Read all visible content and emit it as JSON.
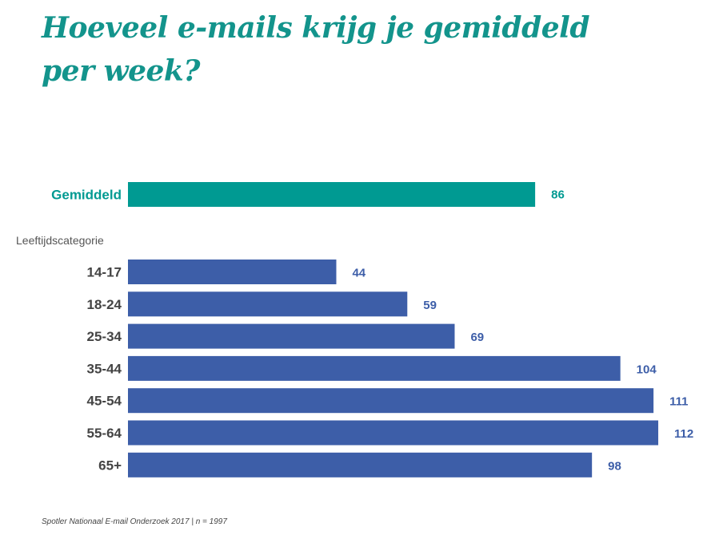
{
  "title": "Hoeveel e-mails krijg je gemiddeld per week?",
  "source": "Spotler Nationaal E-mail Onderzoek 2017 | n = 1997",
  "colors": {
    "average": "#009a92",
    "category": "#3d5ea8",
    "title": "#13948c",
    "axis_label": "#444444"
  },
  "chart_data": {
    "type": "bar",
    "orientation": "horizontal",
    "average": {
      "label": "Gemiddeld",
      "value": 86
    },
    "group_label": "Leeftijdscategorie",
    "categories": [
      "14-17",
      "18-24",
      "25-34",
      "35-44",
      "45-54",
      "55-64",
      "65+"
    ],
    "values": [
      44,
      59,
      69,
      104,
      111,
      112,
      98
    ]
  }
}
